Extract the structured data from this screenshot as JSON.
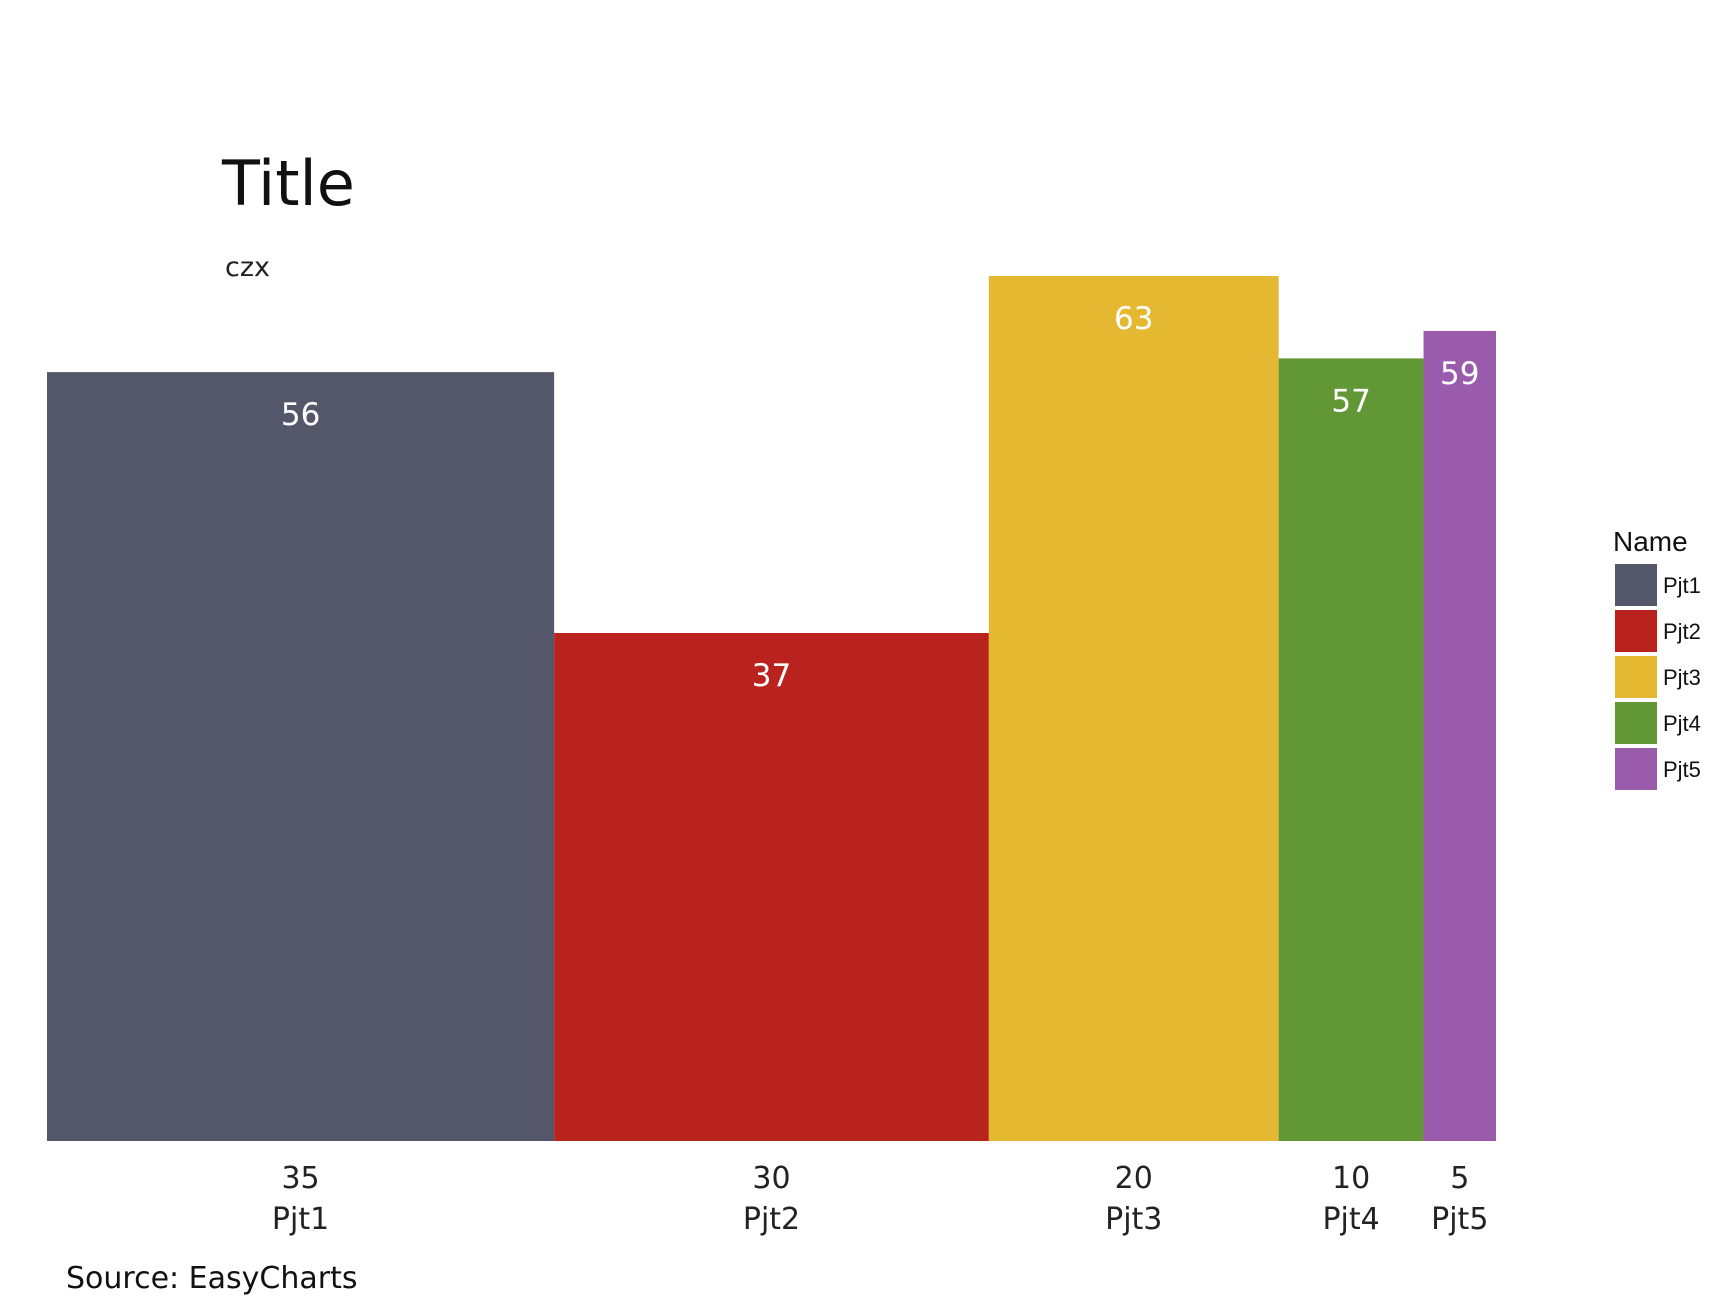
{
  "chart_data": {
    "type": "bar",
    "variant": "variable-width (marimekko)",
    "title": "Title",
    "subtitle": "czx",
    "caption": "Source: EasyCharts",
    "categories": [
      "Pjt1",
      "Pjt2",
      "Pjt3",
      "Pjt4",
      "Pjt5"
    ],
    "widths": [
      35,
      30,
      20,
      10,
      5
    ],
    "values": [
      56,
      37,
      63,
      57,
      59
    ],
    "colors": [
      "#535769",
      "#BA221E",
      "#E4B931",
      "#629735",
      "#9A5BAD"
    ],
    "legend": {
      "title": "Name",
      "items": [
        "Pjt1",
        "Pjt2",
        "Pjt3",
        "Pjt4",
        "Pjt5"
      ],
      "placement": "right"
    },
    "ylim": [
      0,
      63
    ],
    "grid": false
  }
}
